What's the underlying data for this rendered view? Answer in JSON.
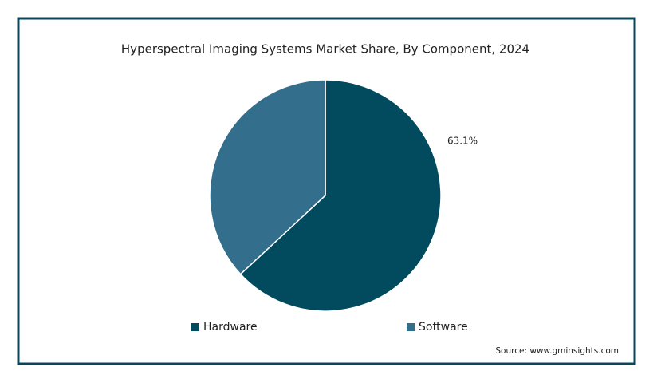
{
  "chart_data": {
    "type": "pie",
    "title": "Hyperspectral Imaging Systems Market Share, By Component, 2024",
    "categories": [
      "Hardware",
      "Software"
    ],
    "values": [
      63.1,
      36.9
    ],
    "value_labels": [
      "63.1%",
      null
    ],
    "colors": [
      "#024a5e",
      "#336e8c"
    ],
    "legend": "bottom",
    "source": "Source: www.gminsights.com"
  }
}
